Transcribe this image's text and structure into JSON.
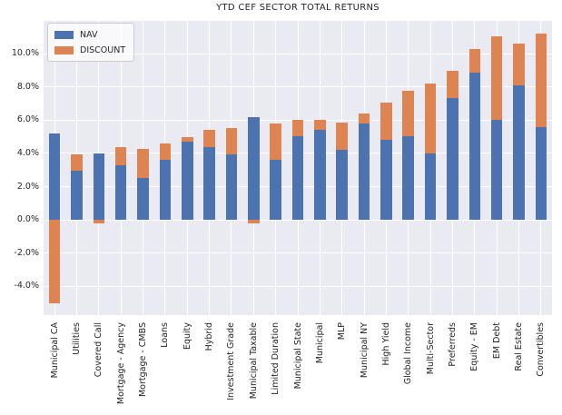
{
  "accent_colors": {
    "nav_blue": "#4C72B0",
    "discount_orange": "#DD8452",
    "plot_background": "#EAEAF2",
    "grid_color": "#FFFFFF",
    "text_color": "#262626"
  },
  "chart_data": {
    "type": "bar",
    "stacked": true,
    "title": "YTD CEF SECTOR TOTAL RETURNS",
    "xlabel": "",
    "ylabel": "",
    "grid": true,
    "legend_position": "upper left",
    "ylim": [
      -5.72,
      12.02
    ],
    "y_ticks": [
      {
        "value": 10,
        "label": "10.0%"
      },
      {
        "value": 8,
        "label": "8.0%"
      },
      {
        "value": 6,
        "label": "6.0%"
      },
      {
        "value": 4,
        "label": "4.0%"
      },
      {
        "value": 2,
        "label": "2.0%"
      },
      {
        "value": 0,
        "label": "0.0%"
      },
      {
        "value": -2,
        "label": "-2.0%"
      },
      {
        "value": -4,
        "label": "-4.0%"
      }
    ],
    "y_grid_values": [
      -4,
      -2,
      0,
      2,
      4,
      6,
      8,
      10,
      12
    ],
    "categories": [
      "Municipal CA",
      "Utilities",
      "Covered Call",
      "Mortgage - Agency",
      "Mortgage - CMBS",
      "Loans",
      "Equity",
      "Hybrid",
      "Investment Grade",
      "Municipal Taxable",
      "Limited Duration",
      "Municipal State",
      "Municipal",
      "MLP",
      "Municipal NY",
      "High Yield",
      "Global Income",
      "Multi-Sector",
      "Preferreds",
      "Equity - EM",
      "EM Debt",
      "Real Estate",
      "Convertibles"
    ],
    "series": [
      {
        "name": "NAV",
        "color": "#4C72B0",
        "values": [
          5.2,
          2.95,
          4.0,
          3.3,
          2.5,
          3.6,
          4.7,
          4.4,
          3.95,
          6.2,
          3.6,
          5.05,
          5.4,
          4.2,
          5.8,
          4.8,
          5.05,
          4.0,
          7.35,
          8.85,
          6.0,
          8.1,
          5.6
        ]
      },
      {
        "name": "DISCOUNT",
        "color": "#DD8452",
        "values": [
          -5.0,
          1.0,
          -0.2,
          1.1,
          1.75,
          1.0,
          0.3,
          1.0,
          1.55,
          -0.2,
          2.2,
          0.95,
          0.6,
          1.65,
          0.6,
          2.25,
          2.7,
          4.2,
          1.6,
          1.4,
          5.05,
          2.5,
          5.6
        ]
      }
    ]
  }
}
